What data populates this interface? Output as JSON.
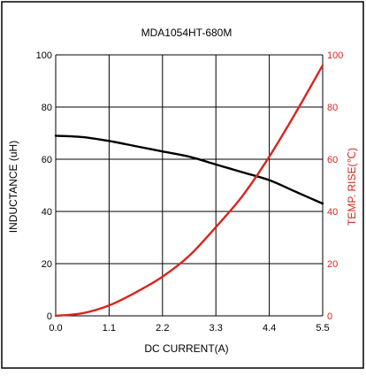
{
  "chart_data": {
    "type": "line",
    "title": "MDA1054HT-680M",
    "xlabel": "DC CURRENT(A)",
    "ylabel_left": "INDUCTANCE (uH)",
    "ylabel_right": "TEMP. RISE(℃)",
    "xlim": [
      0.0,
      5.5
    ],
    "ylim_left": [
      0,
      100
    ],
    "ylim_right": [
      0,
      100
    ],
    "x_ticks": [
      "0.0",
      "1.1",
      "2.2",
      "3.3",
      "4.4",
      "5.5"
    ],
    "y_ticks_left": [
      "0",
      "20",
      "40",
      "60",
      "80",
      "100"
    ],
    "y_ticks_right": [
      "0",
      "20",
      "40",
      "60",
      "80",
      "100"
    ],
    "grid": true,
    "colors": {
      "inductance": "#000000",
      "temp_rise": "#d7261e",
      "grid": "#000000",
      "right_axis_text": "#d7261e"
    },
    "series": [
      {
        "axis": "left",
        "x": [
          0.0,
          0.55,
          1.1,
          1.65,
          2.2,
          2.75,
          3.3,
          3.85,
          4.4,
          4.95,
          5.5
        ],
        "values": [
          69,
          68.5,
          67,
          65,
          63,
          61,
          58,
          55,
          52,
          47.5,
          43
        ]
      },
      {
        "axis": "right",
        "x": [
          0.0,
          0.55,
          1.1,
          1.65,
          2.2,
          2.75,
          3.3,
          3.85,
          4.4,
          4.95,
          5.5
        ],
        "values": [
          0,
          1,
          4,
          9,
          15,
          23,
          34,
          46,
          61,
          78,
          96
        ]
      }
    ]
  }
}
